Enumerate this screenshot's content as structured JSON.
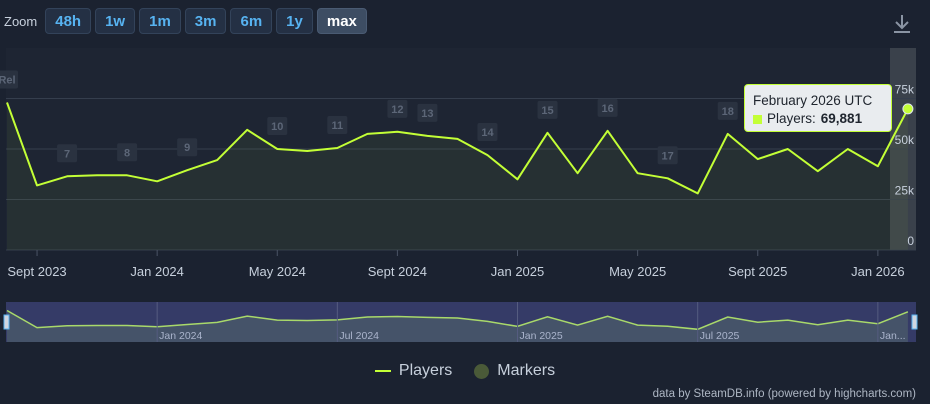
{
  "zoom": {
    "label": "Zoom",
    "buttons": [
      "48h",
      "1w",
      "1m",
      "3m",
      "6m",
      "1y",
      "max"
    ],
    "active": "max"
  },
  "tooltip": {
    "title": "February 2026 UTC",
    "series": "Players:",
    "value": "69,881"
  },
  "legend": {
    "players": "Players",
    "markers": "Markers"
  },
  "credit": "data by SteamDB.info (powered by highcharts.com)",
  "colors": {
    "line": "#c3ff36",
    "background": "#1b2230",
    "marker": "#2a3240",
    "navigator_bg": "#3a4070"
  },
  "icons": {
    "download": "download-icon"
  },
  "chart_data": {
    "type": "line",
    "series": [
      {
        "name": "Players",
        "x": [
          "2023-08",
          "2023-09",
          "2023-10",
          "2023-11",
          "2023-12",
          "2024-01",
          "2024-02",
          "2024-03",
          "2024-04",
          "2024-05",
          "2024-06",
          "2024-07",
          "2024-08",
          "2024-09",
          "2024-10",
          "2024-11",
          "2024-12",
          "2025-01",
          "2025-02",
          "2025-03",
          "2025-04",
          "2025-05",
          "2025-06",
          "2025-07",
          "2025-08",
          "2025-09",
          "2025-10",
          "2025-11",
          "2025-12",
          "2026-01",
          "2026-02"
        ],
        "values": [
          73000,
          32000,
          36500,
          37000,
          37000,
          34000,
          39500,
          44500,
          59500,
          50000,
          49000,
          50500,
          57500,
          58500,
          56500,
          55000,
          47000,
          35000,
          58000,
          38000,
          59000,
          38000,
          35500,
          28000,
          57500,
          45000,
          50000,
          39000,
          50000,
          41500,
          69881
        ]
      }
    ],
    "markers": [
      {
        "label": "Rel",
        "x": "2023-08"
      },
      {
        "label": "7",
        "x": "2023-10"
      },
      {
        "label": "8",
        "x": "2023-12"
      },
      {
        "label": "9",
        "x": "2024-02"
      },
      {
        "label": "10",
        "x": "2024-05"
      },
      {
        "label": "11",
        "x": "2024-07"
      },
      {
        "label": "12",
        "x": "2024-09"
      },
      {
        "label": "13",
        "x": "2024-10"
      },
      {
        "label": "14",
        "x": "2024-12"
      },
      {
        "label": "15",
        "x": "2025-02"
      },
      {
        "label": "16",
        "x": "2025-04"
      },
      {
        "label": "17",
        "x": "2025-06"
      },
      {
        "label": "18",
        "x": "2025-08"
      }
    ],
    "x_ticks": [
      {
        "label": "Sept 2023",
        "x": "2023-09"
      },
      {
        "label": "Jan 2024",
        "x": "2024-01"
      },
      {
        "label": "May 2024",
        "x": "2024-05"
      },
      {
        "label": "Sept 2024",
        "x": "2024-09"
      },
      {
        "label": "Jan 2025",
        "x": "2025-01"
      },
      {
        "label": "May 2025",
        "x": "2025-05"
      },
      {
        "label": "Sept 2025",
        "x": "2025-09"
      },
      {
        "label": "Jan 2026",
        "x": "2026-01"
      }
    ],
    "y_ticks": [
      {
        "label": "0",
        "value": 0
      },
      {
        "label": "25k",
        "value": 25000
      },
      {
        "label": "50k",
        "value": 50000
      },
      {
        "label": "75k",
        "value": 75000
      }
    ],
    "ylim": [
      0,
      100000
    ],
    "grid": true,
    "legend_position": "bottom-center",
    "navigator": {
      "labels": [
        {
          "label": "Jan 2024",
          "x": "2024-01"
        },
        {
          "label": "Jul 2024",
          "x": "2024-07"
        },
        {
          "label": "Jan 2025",
          "x": "2025-01"
        },
        {
          "label": "Jul 2025",
          "x": "2025-07"
        },
        {
          "label": "Jan...",
          "x": "2026-01"
        }
      ]
    }
  }
}
